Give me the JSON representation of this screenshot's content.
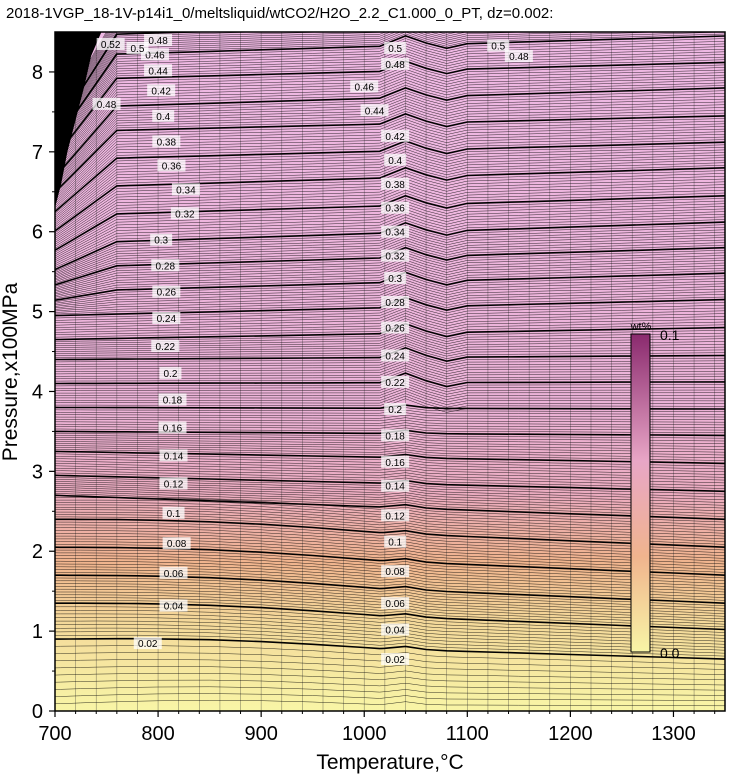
{
  "chart_data": {
    "type": "heatmap",
    "title": "2018-1VGP_18-1V-p14i1_0/meltsliquid/wtCO2/H2O_2.2_C1.000_0_PT, dz=0.002:",
    "xlabel": "Temperature,°C",
    "ylabel": "Pressure,x100MPa",
    "xlim": [
      700,
      1350
    ],
    "ylim": [
      0,
      8.5
    ],
    "x_ticks": [
      "700",
      "800",
      "900",
      "1000",
      "1100",
      "1200",
      "1300"
    ],
    "y_ticks": [
      "0",
      "1",
      "2",
      "3",
      "4",
      "5",
      "6",
      "7",
      "8"
    ],
    "grid": true,
    "colorbar": {
      "unit": "wt%",
      "min_label": "0.0",
      "max_label": "0.1",
      "range": [
        0.0,
        0.1
      ],
      "colors": [
        "#f8f5a6",
        "#f0b48e",
        "#e8a6c6",
        "#8a2a6e"
      ]
    },
    "contour_interval": 0.002,
    "major_contours": [
      {
        "level": 0.02,
        "label": "0.02",
        "pressure_at_700": 0.9,
        "pressure_at_1350": 0.65
      },
      {
        "level": 0.04,
        "label": "0.04",
        "pressure_at_700": 1.35,
        "pressure_at_1350": 1.02
      },
      {
        "level": 0.06,
        "label": "0.06",
        "pressure_at_700": 1.7,
        "pressure_at_1350": 1.35
      },
      {
        "level": 0.08,
        "label": "0.08",
        "pressure_at_700": 2.05,
        "pressure_at_1350": 1.7
      },
      {
        "level": 0.1,
        "label": "0.1",
        "pressure_at_700": 2.4,
        "pressure_at_1350": 2.05
      },
      {
        "level": 0.12,
        "label": "0.12",
        "pressure_at_700": 2.7,
        "pressure_at_1350": 2.4
      },
      {
        "level": 0.14,
        "label": "0.14",
        "pressure_at_700": 2.95,
        "pressure_at_1350": 2.75
      },
      {
        "level": 0.16,
        "label": "0.16",
        "pressure_at_700": 3.25,
        "pressure_at_1350": 3.1
      },
      {
        "level": 0.18,
        "label": "0.18",
        "pressure_at_700": 3.5,
        "pressure_at_1350": 3.45
      },
      {
        "level": 0.2,
        "label": "0.2",
        "pressure_at_700": 3.8,
        "pressure_at_1350": 3.78
      },
      {
        "level": 0.22,
        "label": "0.22",
        "pressure_at_700": 4.1,
        "pressure_at_1350": 4.12
      },
      {
        "level": 0.24,
        "label": "0.24",
        "pressure_at_700": 4.4,
        "pressure_at_1350": 4.45
      },
      {
        "level": 0.26,
        "label": "0.26",
        "pressure_at_700": 4.65,
        "pressure_at_1350": 4.8
      },
      {
        "level": 0.28,
        "label": "0.28",
        "pressure_at_700": 4.95,
        "pressure_at_1350": 5.15
      },
      {
        "level": 0.3,
        "label": "0.3",
        "pressure_at_700": 5.25,
        "pressure_at_1350": 5.48
      },
      {
        "level": 0.32,
        "label": "0.32",
        "pressure_at_700": 5.55,
        "pressure_at_1350": 5.8
      },
      {
        "level": 0.34,
        "label": "0.34",
        "pressure_at_700": 5.85,
        "pressure_at_1350": 6.12
      },
      {
        "level": 0.36,
        "label": "0.36",
        "pressure_at_700": 6.2,
        "pressure_at_1350": 6.45
      },
      {
        "level": 0.38,
        "label": "0.38",
        "pressure_at_700": 6.55,
        "pressure_at_1350": 6.8
      },
      {
        "level": 0.4,
        "label": "0.4",
        "pressure_at_700": 6.9,
        "pressure_at_1350": 7.12
      },
      {
        "level": 0.42,
        "label": "0.42",
        "pressure_at_700": 7.25,
        "pressure_at_1350": 7.45
      },
      {
        "level": 0.44,
        "label": "0.44",
        "pressure_at_700": 7.55,
        "pressure_at_1350": 7.8
      },
      {
        "level": 0.46,
        "label": "0.46",
        "pressure_at_700": 7.9,
        "pressure_at_1350": 8.12
      },
      {
        "level": 0.48,
        "label": "0.48",
        "pressure_at_700": 8.2,
        "pressure_at_1350": 8.45
      },
      {
        "level": 0.5,
        "label": "0.5",
        "pressure_at_700": 8.45,
        "pressure_at_1350": 8.7
      }
    ],
    "contour_labels": [
      {
        "text": "0.02",
        "x": 790,
        "y": 0.85
      },
      {
        "text": "0.02",
        "x": 1030,
        "y": 0.65
      },
      {
        "text": "0.04",
        "x": 815,
        "y": 1.32
      },
      {
        "text": "0.04",
        "x": 1030,
        "y": 1.02
      },
      {
        "text": "0.06",
        "x": 815,
        "y": 1.73
      },
      {
        "text": "0.06",
        "x": 1030,
        "y": 1.35
      },
      {
        "text": "0.08",
        "x": 818,
        "y": 2.1
      },
      {
        "text": "0.08",
        "x": 1030,
        "y": 1.75
      },
      {
        "text": "0.1",
        "x": 815,
        "y": 2.48
      },
      {
        "text": "0.1",
        "x": 1030,
        "y": 2.12
      },
      {
        "text": "0.12",
        "x": 815,
        "y": 2.85
      },
      {
        "text": "0.12",
        "x": 1030,
        "y": 2.45
      },
      {
        "text": "0.14",
        "x": 815,
        "y": 3.2
      },
      {
        "text": "0.14",
        "x": 1030,
        "y": 2.82
      },
      {
        "text": "0.16",
        "x": 814,
        "y": 3.55
      },
      {
        "text": "0.16",
        "x": 1030,
        "y": 3.12
      },
      {
        "text": "0.18",
        "x": 814,
        "y": 3.9
      },
      {
        "text": "0.18",
        "x": 1030,
        "y": 3.45
      },
      {
        "text": "0.2",
        "x": 812,
        "y": 4.23
      },
      {
        "text": "0.2",
        "x": 1030,
        "y": 3.78
      },
      {
        "text": "0.22",
        "x": 807,
        "y": 4.57
      },
      {
        "text": "0.22",
        "x": 1030,
        "y": 4.12
      },
      {
        "text": "0.24",
        "x": 808,
        "y": 4.92
      },
      {
        "text": "0.24",
        "x": 1030,
        "y": 4.45
      },
      {
        "text": "0.26",
        "x": 808,
        "y": 5.25
      },
      {
        "text": "0.26",
        "x": 1030,
        "y": 4.8
      },
      {
        "text": "0.28",
        "x": 807,
        "y": 5.58
      },
      {
        "text": "0.28",
        "x": 1030,
        "y": 5.12
      },
      {
        "text": "0.3",
        "x": 803,
        "y": 5.9
      },
      {
        "text": "0.3",
        "x": 1030,
        "y": 5.42
      },
      {
        "text": "0.32",
        "x": 826,
        "y": 6.23
      },
      {
        "text": "0.32",
        "x": 1030,
        "y": 5.7
      },
      {
        "text": "0.34",
        "x": 827,
        "y": 6.53
      },
      {
        "text": "0.34",
        "x": 1030,
        "y": 6.0
      },
      {
        "text": "0.36",
        "x": 813,
        "y": 6.83
      },
      {
        "text": "0.36",
        "x": 1030,
        "y": 6.3
      },
      {
        "text": "0.38",
        "x": 808,
        "y": 7.13
      },
      {
        "text": "0.38",
        "x": 1030,
        "y": 6.6
      },
      {
        "text": "0.4",
        "x": 805,
        "y": 7.45
      },
      {
        "text": "0.4",
        "x": 1030,
        "y": 6.9
      },
      {
        "text": "0.42",
        "x": 803,
        "y": 7.77
      },
      {
        "text": "0.42",
        "x": 1030,
        "y": 7.2
      },
      {
        "text": "0.44",
        "x": 800,
        "y": 8.02
      },
      {
        "text": "0.44",
        "x": 1010,
        "y": 7.52
      },
      {
        "text": "0.46",
        "x": 797,
        "y": 8.22
      },
      {
        "text": "0.46",
        "x": 1000,
        "y": 7.82
      },
      {
        "text": "0.48",
        "x": 800,
        "y": 8.4
      },
      {
        "text": "0.48",
        "x": 1030,
        "y": 8.1
      },
      {
        "text": "0.48",
        "x": 1150,
        "y": 8.2
      },
      {
        "text": "0.5",
        "x": 1030,
        "y": 8.3
      },
      {
        "text": "0.5",
        "x": 1130,
        "y": 8.33
      },
      {
        "text": "0.5",
        "x": 780,
        "y": 8.3
      },
      {
        "text": "0.52",
        "x": 754,
        "y": 8.35
      },
      {
        "text": "0.48",
        "x": 750,
        "y": 7.6
      }
    ]
  }
}
